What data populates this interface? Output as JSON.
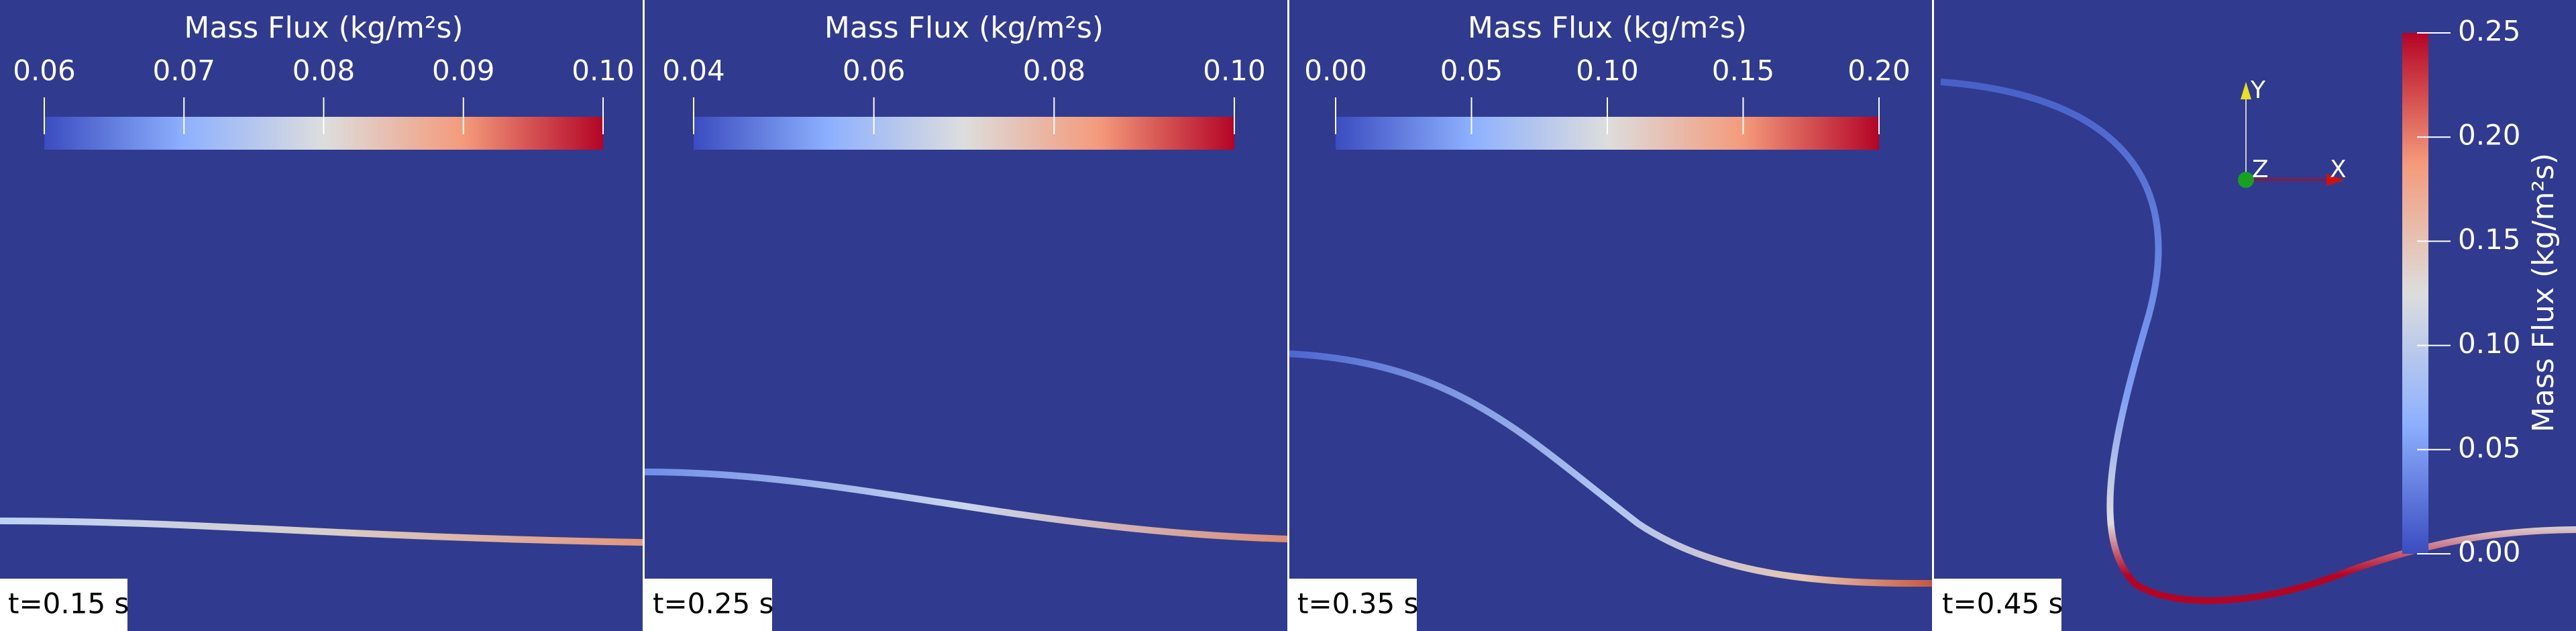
{
  "panels": [
    {
      "time_label": "t=0.15 s",
      "colorbar": {
        "title": "Mass Flux (kg/m²s)",
        "range": [
          0.06,
          {
            "value": 0.1,
            "label": "0.10"
          }
        ],
        "ticks": [
          0.06,
          0.07,
          0.08,
          0.09,
          {
            "value": 0.1,
            "label": "0.10"
          }
        ]
      }
    },
    {
      "time_label": "t=0.25 s",
      "colorbar": {
        "title": "Mass Flux (kg/m²s)",
        "range": [
          0.04,
          {
            "value": 0.1,
            "label": "0.10"
          }
        ],
        "ticks": [
          0.04,
          0.06,
          0.08,
          {
            "value": 0.1,
            "label": "0.10"
          }
        ]
      }
    },
    {
      "time_label": "t=0.35 s",
      "colorbar": {
        "title": "Mass Flux (kg/m²s)",
        "range": [
          {
            "value": 0,
            "label": "0.00"
          },
          {
            "value": 0.2,
            "label": "0.20"
          }
        ],
        "ticks": [
          {
            "value": 0,
            "label": "0.00"
          },
          0.05,
          {
            "value": 0.1,
            "label": "0.10"
          },
          0.15,
          {
            "value": 0.2,
            "label": "0.20"
          }
        ]
      }
    },
    {
      "time_label": "t=0.45 s",
      "colorbar": {
        "title": "Mass Flux (kg/m²s)",
        "range": [
          {
            "value": 0,
            "label": "0.00"
          },
          0.25
        ],
        "ticks": [
          {
            "value": 0,
            "label": "0.00"
          },
          0.05,
          {
            "value": 0.1,
            "label": "0.10"
          },
          0.15,
          {
            "value": 0.2,
            "label": "0.20"
          },
          0.25
        ]
      },
      "axes": {
        "y": "Y",
        "z": "Z",
        "x": "X"
      }
    }
  ]
}
